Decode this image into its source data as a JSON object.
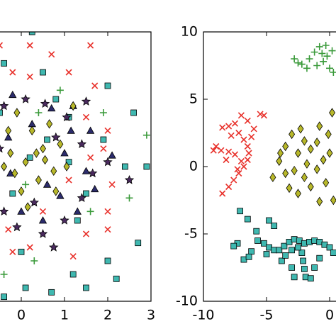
{
  "chart_data": [
    {
      "type": "scatter",
      "xlim": [
        -3,
        3
      ],
      "ylim": [
        -3,
        3
      ],
      "xticks": [
        0,
        1,
        2,
        3
      ],
      "series": [
        {
          "marker": "x",
          "color": "#e8312b",
          "x": [
            -0.5,
            0.2,
            0.7,
            1.6,
            1.1,
            0.2,
            -0.2,
            1.7,
            1.5,
            2.0,
            1.9,
            1.6,
            1.1,
            2.0,
            2.0,
            1.5,
            0.2,
            -0.2,
            1.2,
            0.5,
            -0.3,
            2.1
          ],
          "y": [
            2.7,
            2.7,
            2.5,
            2.7,
            2.1,
            2.0,
            2.1,
            1.8,
            1.1,
            0.8,
            0.4,
            0.2,
            -0.3,
            -1.0,
            -1.4,
            -1.5,
            -1.8,
            -1.9,
            -2.0,
            -1.0,
            -1.4,
            -0.4
          ]
        },
        {
          "marker": "+",
          "color": "#3a9a3a",
          "x": [
            0.9,
            1.9,
            2.9,
            1.6,
            2.5,
            0.3,
            -0.4,
            0.4,
            0.1
          ],
          "y": [
            1.7,
            1.2,
            0.7,
            -1.0,
            -0.7,
            -2.1,
            -2.4,
            1.2,
            -0.4
          ]
        },
        {
          "marker": "s",
          "color": "#3fb8b0",
          "x": [
            0.25,
            -0.4,
            0.5,
            2.0,
            2.6,
            1.1,
            2.9,
            2.7,
            2.0,
            1.2,
            0.1,
            0.7,
            1.5,
            2.2,
            -0.4,
            0.0,
            1.1,
            -0.2,
            1.9,
            0.6,
            1.3,
            2.4,
            0.8,
            0.2,
            1.5,
            -0.5
          ],
          "y": [
            3.0,
            2.3,
            2.1,
            1.8,
            1.2,
            1.1,
            0,
            -1.7,
            -2.1,
            -2.4,
            -2.7,
            -2.8,
            -2.7,
            -2.5,
            -2.9,
            -1.9,
            0.1,
            -0.6,
            0.6,
            0.6,
            -1.2,
            0,
            1.5,
            0.2,
            -0.6,
            1.2
          ]
        },
        {
          "marker": "^",
          "color": "#2c2c6c",
          "x": [
            -0.2,
            0.7,
            1.2,
            1.6,
            2.1,
            1.7,
            1.3,
            0.5,
            -0.25,
            1.0,
            0.6,
            1.15,
            0.0,
            1.5,
            0.25,
            0.9,
            -0.3
          ],
          "y": [
            1.6,
            1.3,
            1.35,
            0.8,
            0.25,
            -0.5,
            -1.0,
            -1.2,
            -0.15,
            0.3,
            -0.4,
            0.8,
            -1.0,
            -0.1,
            0.95,
            -0.65,
            0.65
          ]
        },
        {
          "marker": "*",
          "color": "#4a2a5e",
          "x": [
            -0.4,
            0.1,
            0.55,
            1.05,
            1.4,
            1.65,
            2.5,
            1.4,
            1.0,
            0.5,
            -0.1,
            -0.4,
            2.0,
            0.75,
            1.5,
            0.3,
            0.8,
            -0.5
          ],
          "y": [
            1.35,
            1.5,
            1.4,
            1.1,
            0.5,
            -0.15,
            -0.3,
            -0.7,
            -1.2,
            -1.5,
            -1.35,
            -1.0,
            0.1,
            -1.8,
            1.45,
            -0.8,
            0.65,
            0.4
          ]
        },
        {
          "marker": "d",
          "color": "#b8b82a",
          "x": [
            -0.1,
            0.25,
            0.5,
            0.1,
            -0.25,
            0.75,
            0.4,
            0.0,
            0.9,
            1.05,
            0.65,
            1.2,
            0.35,
            -0.15,
            0.15,
            -0.3,
            0.55,
            -0.4,
            0.8
          ],
          "y": [
            1.2,
            0.8,
            0.4,
            0.1,
            0.3,
            -0.1,
            -0.3,
            -0.55,
            0.5,
            0.0,
            0.95,
            1.35,
            0.3,
            -0.15,
            -0.9,
            0.8,
            0.15,
            0.0,
            -0.55
          ]
        }
      ]
    },
    {
      "type": "scatter",
      "xlim": [
        -10,
        10
      ],
      "ylim": [
        -10,
        10
      ],
      "xticks": [
        -10,
        -5,
        0
      ],
      "yticks": [
        -10,
        -5,
        0,
        5,
        10
      ],
      "series": [
        {
          "marker": "+",
          "color": "#3a9a3a",
          "x": [
            -2.8,
            -2.2,
            -1.6,
            -1.2,
            -0.8,
            -0.3,
            0.2,
            -0.5,
            0.0,
            -1.0,
            -1.8,
            0.3,
            -0.2,
            -2.5,
            -0.6
          ],
          "y": [
            8.0,
            7.6,
            8.0,
            8.5,
            8.9,
            9.0,
            8.6,
            7.8,
            7.3,
            7.5,
            7.3,
            7.0,
            8.2,
            7.7,
            8.4
          ]
        },
        {
          "marker": "x",
          "color": "#e8312b",
          "x": [
            -7.0,
            -6.5,
            -8.5,
            -8.0,
            -7.5,
            -7.2,
            -6.8,
            -6.5,
            -6.4,
            -6.5,
            -6.8,
            -7.2,
            -7.6,
            -8.0,
            -8.5,
            -9.2,
            -8.6,
            -8.0,
            -7.5,
            -7.0,
            -8.2,
            -6.0,
            -5.5,
            -5.2,
            -7.8,
            -7.3,
            -9.0,
            -6.2
          ],
          "y": [
            3.8,
            3.4,
            2.9,
            3.0,
            3.2,
            2.5,
            2.0,
            1.5,
            1.0,
            0.5,
            0.0,
            -0.5,
            -1.0,
            -1.5,
            -2.0,
            1.2,
            1.2,
            1.1,
            0.9,
            0.4,
            0.5,
            2.8,
            3.9,
            3.8,
            2.3,
            -0.2,
            1.5,
            2.2
          ]
        },
        {
          "marker": "d",
          "color": "#b8b82a",
          "x": [
            -2.0,
            -1.5,
            -2.5,
            -3.0,
            -3.5,
            -4.0,
            -3.5,
            -2.8,
            -2.0,
            -1.5,
            -1.0,
            -0.5,
            -1.0,
            0.0,
            -0.3,
            -2.5,
            -3.2,
            -4.5,
            -0.8,
            0.2,
            -0.1,
            -1.8,
            -3.9,
            0.3,
            -0.8,
            -2.3
          ],
          "y": [
            1.9,
            1.3,
            1.0,
            2.4,
            1.5,
            0.4,
            -0.5,
            -0.3,
            -0.8,
            -1.5,
            -0.2,
            0.5,
            1.8,
            1.0,
            -1.2,
            -2.0,
            -1.6,
            -0.8,
            3.0,
            4.0,
            2.4,
            0.2,
            1.0,
            -2.5,
            -2.6,
            2.8
          ]
        },
        {
          "marker": "s",
          "color": "#3fb8b0",
          "x": [
            -7.1,
            -6.5,
            -6.2,
            -5.7,
            -5.2,
            -4.8,
            -4.4,
            -4.0,
            -3.6,
            -3.2,
            -2.8,
            -2.4,
            -2.0,
            -1.6,
            -1.2,
            -0.8,
            -0.4,
            0.0,
            0.3,
            -6.8,
            -6.4,
            -7.3,
            -7.6,
            -5.0,
            -2.2,
            -2.1,
            -2.0,
            -1.9,
            -2.5,
            -3.0,
            -4.4,
            -4.8,
            -5.8,
            -3.8,
            -3.0,
            -2.8,
            -1.5,
            -1.2,
            -0.8,
            -3.5
          ],
          "y": [
            -3.3,
            -3.9,
            -6.3,
            -5.5,
            -5.7,
            -6.0,
            -6.2,
            -6.2,
            -5.9,
            -5.6,
            -5.4,
            -5.5,
            -5.7,
            -5.6,
            -5.5,
            -5.6,
            -5.8,
            -6.0,
            -6.4,
            -6.9,
            -6.7,
            -5.7,
            -5.9,
            -6.5,
            -6.4,
            -7.0,
            -7.6,
            -8.2,
            -6.0,
            -6.2,
            -4.4,
            -4.0,
            -4.8,
            -7.0,
            -7.5,
            -8.2,
            -8.3,
            -7.5,
            -6.8,
            -6.6
          ]
        }
      ]
    }
  ]
}
